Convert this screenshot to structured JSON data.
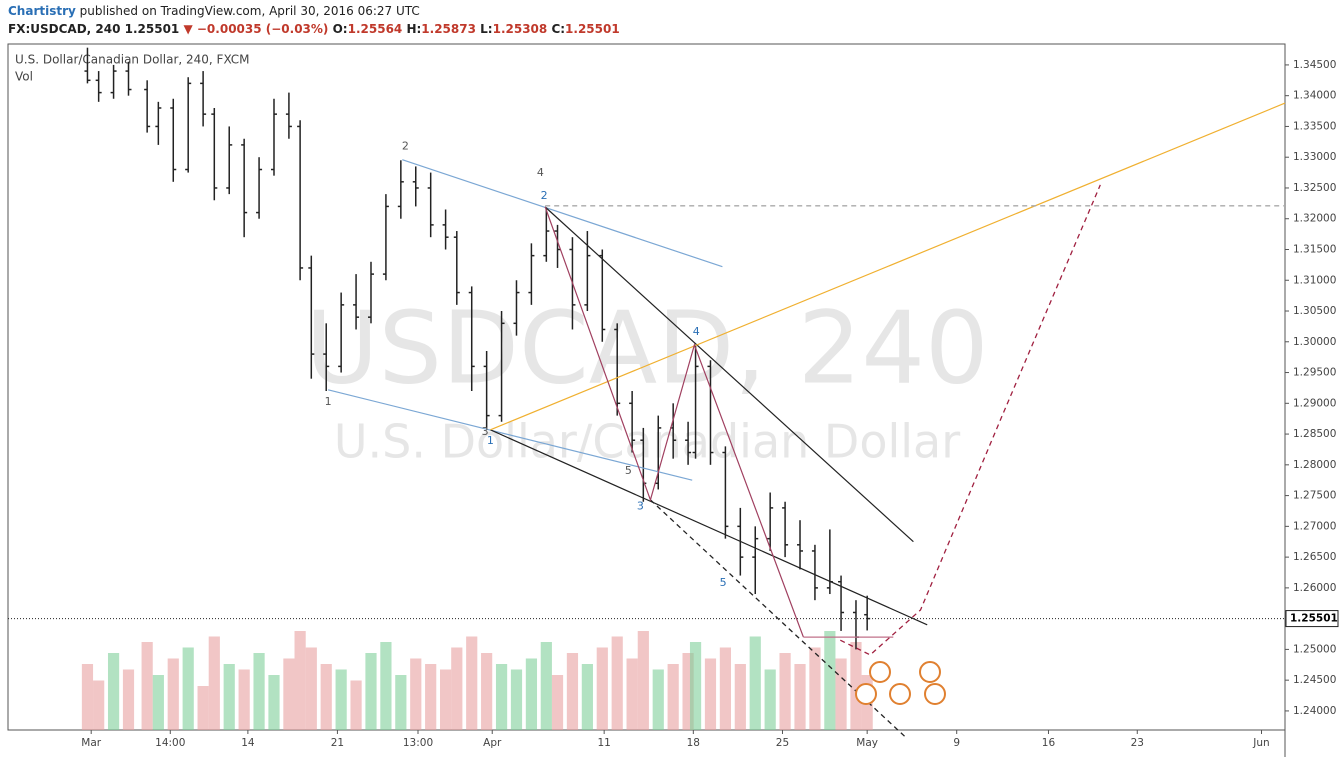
{
  "header": {
    "author": "Chartistry",
    "published": "published on TradingView.com, April 30, 2016 06:27 UTC",
    "symbol": "FX:USDCAD, 240",
    "last": "1.25501",
    "change": "▼ −0.00035 (−0.03%)",
    "o_label": "O:",
    "o": "1.25564",
    "h_label": "H:",
    "h": "1.25873",
    "l_label": "L:",
    "l": "1.25308",
    "c_label": "C:",
    "c": "1.25501"
  },
  "chart_data": {
    "type": "ohlc",
    "title": "U.S. Dollar/Canadian Dollar, 240, FXCM",
    "volume_label": "Vol",
    "watermark": "USDCAD, 240",
    "watermark_subtitle": "U.S. Dollar/Canadian Dollar",
    "xlim": [
      -22.3,
      320
    ],
    "ylim": [
      1.2369,
      1.3484
    ],
    "xticks": [
      {
        "value": 0,
        "label": "Mar"
      },
      {
        "value": 21.2,
        "label": "14:00"
      },
      {
        "value": 42,
        "label": "14"
      },
      {
        "value": 66,
        "label": "21"
      },
      {
        "value": 87.6,
        "label": "13:00"
      },
      {
        "value": 107.5,
        "label": "Apr"
      },
      {
        "value": 137.5,
        "label": "11"
      },
      {
        "value": 161.4,
        "label": "18"
      },
      {
        "value": 185.3,
        "label": "25"
      },
      {
        "value": 208,
        "label": "May"
      },
      {
        "value": 232,
        "label": "9"
      },
      {
        "value": 256.6,
        "label": "16"
      },
      {
        "value": 280.4,
        "label": "23"
      },
      {
        "value": 313.7,
        "label": "Jun"
      }
    ],
    "yticks": [
      {
        "value": 1.24,
        "label": "1.24000"
      },
      {
        "value": 1.245,
        "label": "1.24500"
      },
      {
        "value": 1.25,
        "label": "1.25000"
      },
      {
        "value": 1.255,
        "label": "1.25500"
      },
      {
        "value": 1.26,
        "label": "1.26000"
      },
      {
        "value": 1.265,
        "label": "1.26500"
      },
      {
        "value": 1.27,
        "label": "1.27000"
      },
      {
        "value": 1.275,
        "label": "1.27500"
      },
      {
        "value": 1.28,
        "label": "1.28000"
      },
      {
        "value": 1.285,
        "label": "1.28500"
      },
      {
        "value": 1.29,
        "label": "1.29000"
      },
      {
        "value": 1.295,
        "label": "1.29500"
      },
      {
        "value": 1.3,
        "label": "1.30000"
      },
      {
        "value": 1.305,
        "label": "1.30500"
      },
      {
        "value": 1.31,
        "label": "1.31000"
      },
      {
        "value": 1.315,
        "label": "1.31500"
      },
      {
        "value": 1.32,
        "label": "1.32000"
      },
      {
        "value": 1.325,
        "label": "1.32500"
      },
      {
        "value": 1.33,
        "label": "1.33000"
      },
      {
        "value": 1.335,
        "label": "1.33500"
      },
      {
        "value": 1.34,
        "label": "1.34000"
      },
      {
        "value": 1.345,
        "label": "1.34500"
      }
    ],
    "last_price": 1.25501,
    "bar_color": "#222222",
    "up_volume_color": "#7fcf9a",
    "down_volume_color": "#e8a0a0",
    "x": [
      -1,
      2,
      6,
      10,
      15,
      18,
      22,
      26,
      30,
      33,
      37,
      41,
      45,
      49,
      53,
      56,
      59,
      63,
      67,
      71,
      75,
      79,
      83,
      87,
      91,
      95,
      98,
      102,
      106,
      110,
      114,
      118,
      122,
      125,
      129,
      133,
      137,
      141,
      145,
      148,
      152,
      156,
      160,
      162,
      166,
      170,
      174,
      178,
      182,
      186,
      190,
      194,
      198,
      201,
      205,
      208
    ],
    "open": [
      1.344,
      1.3425,
      1.3405,
      1.344,
      1.341,
      1.335,
      1.338,
      1.328,
      1.342,
      1.337,
      1.325,
      1.332,
      1.321,
      1.328,
      1.337,
      1.335,
      1.312,
      1.298,
      1.296,
      1.306,
      1.304,
      1.311,
      1.322,
      1.326,
      1.325,
      1.319,
      1.317,
      1.308,
      1.296,
      1.288,
      1.303,
      1.308,
      1.314,
      1.318,
      1.315,
      1.306,
      1.314,
      1.302,
      1.29,
      1.284,
      1.277,
      1.286,
      1.284,
      1.282,
      1.296,
      1.282,
      1.27,
      1.265,
      1.268,
      1.273,
      1.267,
      1.266,
      1.26,
      1.261,
      1.256,
      1.25564
    ],
    "high": [
      1.3478,
      1.344,
      1.345,
      1.3455,
      1.3425,
      1.339,
      1.3395,
      1.343,
      1.344,
      1.338,
      1.335,
      1.333,
      1.33,
      1.3395,
      1.3405,
      1.336,
      1.314,
      1.303,
      1.308,
      1.311,
      1.313,
      1.324,
      1.3295,
      1.3285,
      1.3275,
      1.3215,
      1.318,
      1.309,
      1.2985,
      1.305,
      1.31,
      1.316,
      1.3218,
      1.319,
      1.317,
      1.318,
      1.315,
      1.303,
      1.292,
      1.286,
      1.288,
      1.29,
      1.287,
      1.2995,
      1.297,
      1.283,
      1.273,
      1.27,
      1.2755,
      1.274,
      1.271,
      1.267,
      1.2695,
      1.262,
      1.258,
      1.25873
    ],
    "low": [
      1.342,
      1.339,
      1.3395,
      1.34,
      1.334,
      1.332,
      1.326,
      1.3275,
      1.335,
      1.323,
      1.324,
      1.317,
      1.32,
      1.327,
      1.333,
      1.31,
      1.294,
      1.292,
      1.295,
      1.302,
      1.303,
      1.31,
      1.32,
      1.322,
      1.317,
      1.315,
      1.306,
      1.292,
      1.286,
      1.287,
      1.301,
      1.306,
      1.313,
      1.312,
      1.302,
      1.305,
      1.3,
      1.288,
      1.282,
      1.274,
      1.276,
      1.281,
      1.28,
      1.281,
      1.28,
      1.268,
      1.262,
      1.259,
      1.266,
      1.265,
      1.263,
      1.258,
      1.259,
      1.253,
      1.25,
      1.25308
    ],
    "close": [
      1.3425,
      1.3405,
      1.344,
      1.341,
      1.335,
      1.338,
      1.328,
      1.342,
      1.337,
      1.325,
      1.332,
      1.321,
      1.328,
      1.337,
      1.335,
      1.312,
      1.298,
      1.296,
      1.306,
      1.304,
      1.311,
      1.322,
      1.326,
      1.325,
      1.319,
      1.317,
      1.308,
      1.296,
      1.288,
      1.303,
      1.308,
      1.314,
      1.318,
      1.315,
      1.306,
      1.314,
      1.302,
      1.29,
      1.284,
      1.277,
      1.286,
      1.284,
      1.282,
      1.296,
      1.282,
      1.27,
      1.265,
      1.268,
      1.273,
      1.267,
      1.266,
      1.26,
      1.261,
      1.256,
      1.252,
      1.25501
    ],
    "volume": [
      60,
      45,
      70,
      55,
      80,
      50,
      65,
      75,
      40,
      85,
      60,
      55,
      70,
      50,
      65,
      90,
      75,
      60,
      55,
      45,
      70,
      80,
      50,
      65,
      60,
      55,
      75,
      85,
      70,
      60,
      55,
      65,
      80,
      50,
      70,
      60,
      75,
      85,
      65,
      90,
      55,
      60,
      70,
      80,
      65,
      75,
      60,
      85,
      55,
      70,
      60,
      75,
      90,
      65,
      80,
      50
    ],
    "drawings": [
      {
        "name": "upper-channel-a",
        "color": "#7ba7d4",
        "dash": false,
        "x": [
          83.4,
          169.2
        ],
        "y": [
          1.3296,
          1.3122
        ]
      },
      {
        "name": "lower-channel-a",
        "color": "#7ba7d4",
        "dash": false,
        "x": [
          63.5,
          161.1
        ],
        "y": [
          1.2922,
          1.2775
        ]
      },
      {
        "name": "upper-wedge",
        "color": "#222222",
        "dash": false,
        "x": [
          121.7,
          220.4
        ],
        "y": [
          1.3219,
          1.2675
        ]
      },
      {
        "name": "lower-wedge",
        "color": "#222222",
        "dash": false,
        "x": [
          107,
          224.1
        ],
        "y": [
          1.2857,
          1.254
        ]
      },
      {
        "name": "lower-wedge-dashed",
        "color": "#222222",
        "dash": true,
        "x": [
          149.9,
          218.2
        ],
        "y": [
          1.2743,
          1.2358
        ]
      },
      {
        "name": "support-line",
        "color": "#f0b030",
        "dash": false,
        "x": [
          107,
          320
        ],
        "y": [
          1.2857,
          1.3388
        ]
      },
      {
        "name": "target-level",
        "color": "#aaaaaa",
        "dash": true,
        "x": [
          121.7,
          320
        ],
        "y": [
          1.3221,
          1.3221
        ]
      },
      {
        "name": "wave-zigzag",
        "color": "#a04060",
        "dash": false,
        "x": [
          121.7,
          149.9,
          161.7,
          190.9
        ],
        "y": [
          1.3219,
          1.2743,
          1.2995,
          1.252
        ]
      },
      {
        "name": "wave-base",
        "color": "#c0708a",
        "dash": false,
        "x": [
          190.9,
          215
        ],
        "y": [
          1.252,
          1.252
        ]
      },
      {
        "name": "projection",
        "color": "#a02040",
        "dash": true,
        "x": [
          200.8,
          208.8,
          222.3,
          243.7,
          270.5
        ],
        "y": [
          1.2515,
          1.2491,
          1.2564,
          1.2873,
          1.3255
        ]
      }
    ],
    "annotations": [
      {
        "text": "2",
        "x": 84.2,
        "y": 1.3317,
        "color": "#555555"
      },
      {
        "text": "4",
        "x": 120.4,
        "y": 1.3274,
        "color": "#555555"
      },
      {
        "text": "1",
        "x": 63.5,
        "y": 1.2902,
        "color": "#555555"
      },
      {
        "text": "3",
        "x": 105.6,
        "y": 1.2853,
        "color": "#555555"
      },
      {
        "text": "5",
        "x": 144,
        "y": 1.279,
        "color": "#555555"
      },
      {
        "text": "2",
        "x": 121.4,
        "y": 1.3237,
        "color": "#2a6fb5"
      },
      {
        "text": "1",
        "x": 107,
        "y": 1.2839,
        "color": "#2a6fb5"
      },
      {
        "text": "4",
        "x": 162.2,
        "y": 1.3016,
        "color": "#2a6fb5"
      },
      {
        "text": "3",
        "x": 147.2,
        "y": 1.2732,
        "color": "#2a6fb5"
      },
      {
        "text": "5",
        "x": 169.4,
        "y": 1.2608,
        "color": "#2a6fb5"
      }
    ]
  }
}
